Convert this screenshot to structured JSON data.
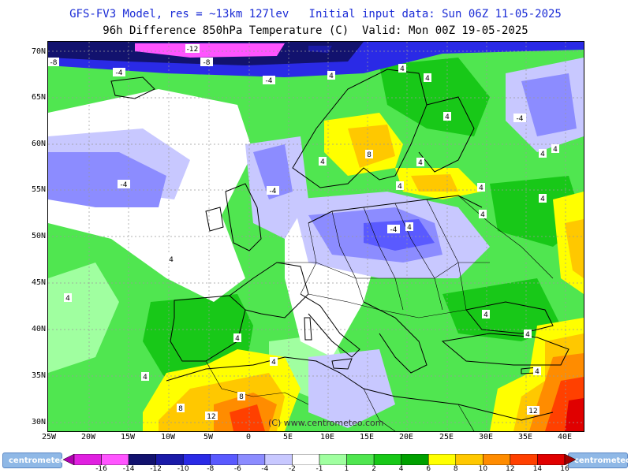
{
  "header": {
    "line1": "GFS-FV3 Model, res = ~13km 127lev   Initial input data: Sun 06Z 11-05-2025",
    "line2": "96h Difference 850hPa Temperature (C)  Valid: Mon 00Z 19-05-2025"
  },
  "axes": {
    "lat_labels": [
      "70N",
      "65N",
      "60N",
      "55N",
      "50N",
      "45N",
      "40N",
      "35N",
      "30N"
    ],
    "lon_labels": [
      "25W",
      "20W",
      "15W",
      "10W",
      "5W",
      "0",
      "5E",
      "10E",
      "15E",
      "20E",
      "25E",
      "30E",
      "35E",
      "40E"
    ]
  },
  "watermark": "(C) www.centrometeo.com",
  "logos": {
    "left": "centrometeo",
    "right": "centrometeo"
  },
  "colorbar": {
    "labels": [
      "-16",
      "-14",
      "-12",
      "-10",
      "-8",
      "-6",
      "-4",
      "-2",
      "-1",
      "1",
      "2",
      "4",
      "6",
      "8",
      "10",
      "12",
      "14",
      "16"
    ],
    "colors": [
      "#b000b0",
      "#e020e0",
      "#ff55ff",
      "#12126e",
      "#1a1aa8",
      "#2a2ae6",
      "#5a5aff",
      "#8c8cff",
      "#c8c8ff",
      "#ffffff",
      "#a0ffa0",
      "#50e650",
      "#18c818",
      "#00a000",
      "#ffff00",
      "#ffc800",
      "#ff8c00",
      "#ff4000",
      "#e00000",
      "#a00000"
    ]
  },
  "map": {
    "contour_labels": [
      "-12",
      "-8",
      "-8",
      "-4",
      "-4",
      "-4",
      "-4",
      "-4",
      "-4",
      "4",
      "4",
      "4",
      "4",
      "4",
      "4",
      "4",
      "4",
      "4",
      "4",
      "4",
      "4",
      "4",
      "4",
      "4",
      "4",
      "4",
      "4",
      "4",
      "4",
      "4",
      "8",
      "8",
      "8",
      "12",
      "12"
    ]
  }
}
